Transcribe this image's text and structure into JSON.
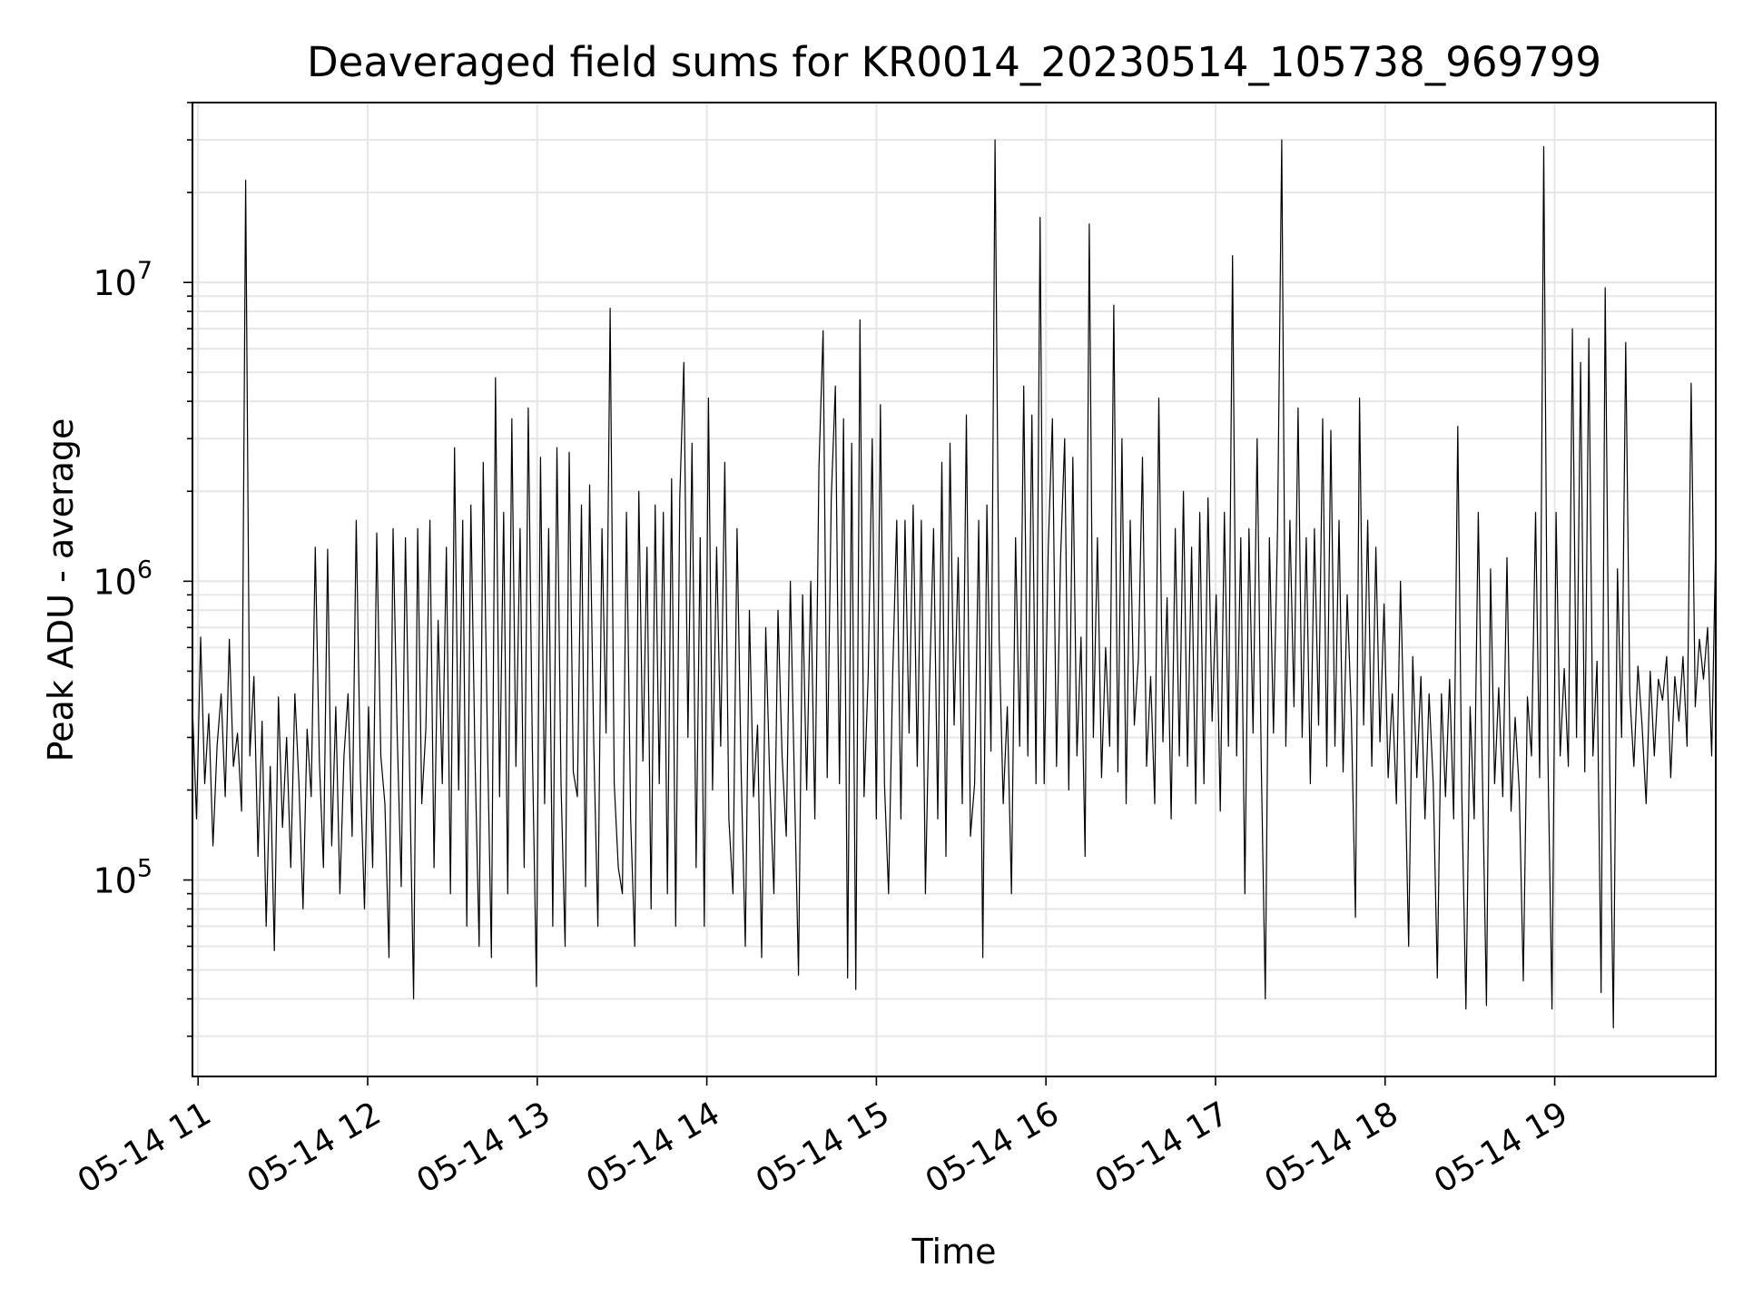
{
  "chart_data": {
    "type": "line",
    "title": "Deaveraged field sums for KR0014_20230514_105738_969799",
    "xlabel": "Time",
    "ylabel": "Peak ADU - average",
    "x_ticks": [
      "05-14 11",
      "05-14 12",
      "05-14 13",
      "05-14 14",
      "05-14 15",
      "05-14 16",
      "05-14 17",
      "05-14 18",
      "05-14 19"
    ],
    "y_ticks": [
      {
        "base": "10",
        "exp": "5",
        "value": 100000
      },
      {
        "base": "10",
        "exp": "6",
        "value": 1000000
      },
      {
        "base": "10",
        "exp": "7",
        "value": 10000000
      }
    ],
    "xlim": [
      "2023-05-14 10:58",
      "2023-05-14 19:57"
    ],
    "ylim": [
      22000,
      40000000
    ],
    "y_scale": "log",
    "grid": true,
    "line_color": "#000000",
    "series": [
      {
        "x_start": "2023-05-14 10:58",
        "x_end": "2023-05-14 19:57",
        "values": [
          380000,
          160000,
          650000,
          210000,
          360000,
          130000,
          280000,
          420000,
          190000,
          640000,
          240000,
          310000,
          170000,
          22000000,
          260000,
          480000,
          120000,
          340000,
          70000,
          240000,
          58000,
          410000,
          150000,
          300000,
          110000,
          420000,
          210000,
          80000,
          320000,
          190000,
          1300000,
          250000,
          110000,
          1280000,
          130000,
          380000,
          90000,
          260000,
          420000,
          140000,
          1600000,
          230000,
          80000,
          380000,
          110000,
          1450000,
          260000,
          180000,
          55000,
          1500000,
          310000,
          95000,
          1400000,
          240000,
          40000,
          1500000,
          180000,
          320000,
          1600000,
          110000,
          740000,
          210000,
          1300000,
          90000,
          2800000,
          200000,
          1600000,
          70000,
          1800000,
          260000,
          60000,
          2500000,
          310000,
          55000,
          4800000,
          190000,
          1700000,
          90000,
          3500000,
          240000,
          1500000,
          110000,
          3800000,
          280000,
          44000,
          2600000,
          180000,
          1500000,
          70000,
          2800000,
          210000,
          60000,
          2700000,
          230000,
          190000,
          1800000,
          95000,
          2100000,
          280000,
          70000,
          1500000,
          310000,
          8200000,
          210000,
          110000,
          90000,
          1700000,
          160000,
          60000,
          2000000,
          250000,
          1300000,
          80000,
          1800000,
          210000,
          1700000,
          90000,
          2200000,
          70000,
          1900000,
          5400000,
          300000,
          2900000,
          110000,
          1400000,
          70000,
          4100000,
          200000,
          1300000,
          280000,
          2500000,
          160000,
          90000,
          1500000,
          230000,
          60000,
          800000,
          190000,
          330000,
          55000,
          700000,
          210000,
          90000,
          800000,
          260000,
          140000,
          1000000,
          210000,
          48000,
          900000,
          200000,
          1000000,
          160000,
          2400000,
          6900000,
          220000,
          1900000,
          4500000,
          210000,
          3500000,
          47000,
          2900000,
          43000,
          7500000,
          190000,
          480000,
          3000000,
          160000,
          3900000,
          210000,
          90000,
          480000,
          1600000,
          160000,
          1600000,
          310000,
          1800000,
          240000,
          1600000,
          90000,
          450000,
          1500000,
          160000,
          2500000,
          120000,
          2900000,
          330000,
          1200000,
          180000,
          3600000,
          140000,
          210000,
          1600000,
          55000,
          1800000,
          270000,
          30000000,
          650000,
          180000,
          380000,
          90000,
          1400000,
          280000,
          4500000,
          260000,
          3600000,
          210000,
          16500000,
          210000,
          1300000,
          3500000,
          240000,
          1200000,
          3000000,
          200000,
          2600000,
          260000,
          650000,
          120000,
          15700000,
          300000,
          1400000,
          220000,
          600000,
          280000,
          8400000,
          230000,
          3000000,
          180000,
          1600000,
          330000,
          550000,
          2600000,
          240000,
          480000,
          180000,
          4100000,
          290000,
          880000,
          160000,
          1500000,
          260000,
          2000000,
          240000,
          1300000,
          180000,
          1700000,
          210000,
          1900000,
          340000,
          900000,
          170000,
          1700000,
          280000,
          12300000,
          260000,
          1400000,
          90000,
          1500000,
          310000,
          3000000,
          250000,
          40000,
          1400000,
          310000,
          1500000,
          30000000,
          280000,
          1600000,
          380000,
          3800000,
          300000,
          1400000,
          210000,
          1500000,
          330000,
          3500000,
          240000,
          3200000,
          280000,
          1600000,
          230000,
          900000,
          360000,
          75000,
          4100000,
          330000,
          1600000,
          240000,
          1300000,
          290000,
          840000,
          220000,
          420000,
          180000,
          1000000,
          270000,
          60000,
          560000,
          220000,
          480000,
          160000,
          420000,
          210000,
          47000,
          420000,
          190000,
          470000,
          160000,
          3300000,
          190000,
          37000,
          380000,
          160000,
          1700000,
          230000,
          38000,
          1100000,
          210000,
          440000,
          190000,
          1200000,
          170000,
          350000,
          200000,
          46000,
          410000,
          260000,
          1700000,
          220000,
          28500000,
          260000,
          37000,
          1700000,
          260000,
          510000,
          240000,
          7000000,
          300000,
          5400000,
          230000,
          6500000,
          260000,
          540000,
          42000,
          9600000,
          310000,
          32000,
          1100000,
          300000,
          6300000,
          420000,
          240000,
          520000,
          330000,
          180000,
          500000,
          260000,
          470000,
          400000,
          560000,
          220000,
          480000,
          340000,
          560000,
          280000,
          4600000,
          380000,
          640000,
          470000,
          700000,
          260000,
          1400000
        ]
      }
    ]
  }
}
